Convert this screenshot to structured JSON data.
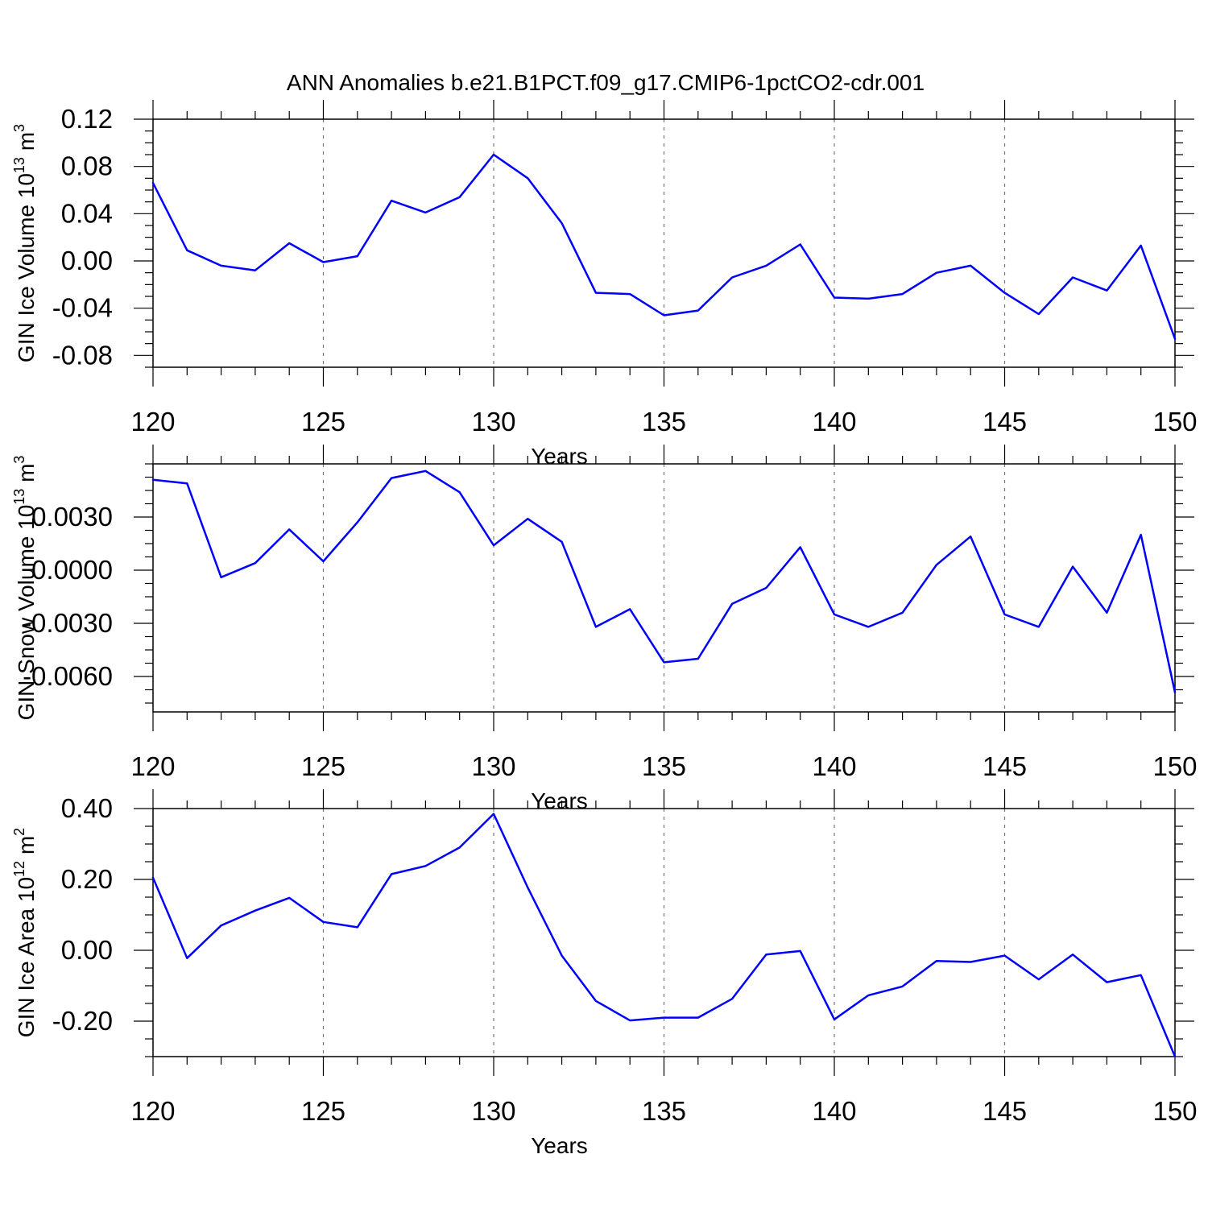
{
  "page_title": "ANN Anomalies b.e21.B1PCT.f09_g17.CMIP6-1pctCO2-cdr.001",
  "chart_data": [
    {
      "type": "line",
      "title": "ANN Anomalies b.e21.B1PCT.f09_g17.CMIP6-1pctCO2-cdr.001",
      "xlabel": "Years",
      "ylabel": "GIN Ice Volume 10",
      "ylabel_exp": "13",
      "ylabel_unit": " m",
      "ylabel_unit_exp": "3",
      "xlim": [
        120,
        150
      ],
      "ylim": [
        -0.09,
        0.12
      ],
      "xticks": [
        120,
        125,
        130,
        135,
        140,
        145,
        150
      ],
      "xtick_labels": [
        "120",
        "125",
        "130",
        "135",
        "140",
        "145",
        "150"
      ],
      "yticks": [
        0.12,
        0.08,
        0.04,
        0.0,
        -0.04,
        -0.08
      ],
      "ytick_labels": [
        "0.12",
        "0.08",
        "0.04",
        "0.00",
        "-0.04",
        "-0.08"
      ],
      "grid": "x-dashed",
      "color": "#0000ff",
      "x": [
        120,
        121,
        122,
        123,
        124,
        125,
        126,
        127,
        128,
        129,
        130,
        131,
        132,
        133,
        134,
        135,
        136,
        137,
        138,
        139,
        140,
        141,
        142,
        143,
        144,
        145,
        146,
        147,
        148,
        149,
        150
      ],
      "y": [
        0.066,
        0.009,
        -0.004,
        -0.008,
        0.015,
        -0.001,
        0.004,
        0.051,
        0.041,
        0.054,
        0.09,
        0.07,
        0.032,
        -0.027,
        -0.028,
        -0.046,
        -0.042,
        -0.014,
        -0.004,
        0.014,
        -0.031,
        -0.032,
        -0.028,
        -0.01,
        -0.004,
        -0.027,
        -0.045,
        -0.014,
        -0.025,
        0.013,
        -0.066
      ]
    },
    {
      "type": "line",
      "xlabel": "Years",
      "ylabel": "GIN Snow Volume 10",
      "ylabel_exp": "13",
      "ylabel_unit": " m",
      "ylabel_unit_exp": "3",
      "xlim": [
        120,
        150
      ],
      "ylim": [
        -0.008,
        0.006
      ],
      "xticks": [
        120,
        125,
        130,
        135,
        140,
        145,
        150
      ],
      "xtick_labels": [
        "120",
        "125",
        "130",
        "135",
        "140",
        "145",
        "150"
      ],
      "yticks": [
        0.003,
        0.0,
        -0.003,
        -0.006
      ],
      "ytick_labels": [
        "0.0030",
        "0.0000",
        "-0.0030",
        "-0.0060"
      ],
      "grid": "x-dashed",
      "color": "#0000ff",
      "x": [
        120,
        121,
        122,
        123,
        124,
        125,
        126,
        127,
        128,
        129,
        130,
        131,
        132,
        133,
        134,
        135,
        136,
        137,
        138,
        139,
        140,
        141,
        142,
        143,
        144,
        145,
        146,
        147,
        148,
        149,
        150
      ],
      "y": [
        0.0051,
        0.0049,
        -0.0004,
        0.0004,
        0.0023,
        0.0005,
        0.0027,
        0.0052,
        0.0056,
        0.0044,
        0.0014,
        0.0029,
        0.0016,
        -0.0032,
        -0.0022,
        -0.0052,
        -0.005,
        -0.0019,
        -0.001,
        0.0013,
        -0.0025,
        -0.0032,
        -0.0024,
        0.0003,
        0.0019,
        -0.0025,
        -0.0032,
        0.0002,
        -0.0024,
        0.002,
        -0.0069
      ]
    },
    {
      "type": "line",
      "xlabel": "Years",
      "ylabel": "GIN Ice Area 10",
      "ylabel_exp": "12",
      "ylabel_unit": " m",
      "ylabel_unit_exp": "2",
      "xlim": [
        120,
        150
      ],
      "ylim": [
        -0.3,
        0.4
      ],
      "xticks": [
        120,
        125,
        130,
        135,
        140,
        145,
        150
      ],
      "xtick_labels": [
        "120",
        "125",
        "130",
        "135",
        "140",
        "145",
        "150"
      ],
      "yticks": [
        0.4,
        0.2,
        0.0,
        -0.2
      ],
      "ytick_labels": [
        "0.40",
        "0.20",
        "0.00",
        "-0.20"
      ],
      "grid": "x-dashed",
      "color": "#0000ff",
      "x": [
        120,
        121,
        122,
        123,
        124,
        125,
        126,
        127,
        128,
        129,
        130,
        131,
        132,
        133,
        134,
        135,
        136,
        137,
        138,
        139,
        140,
        141,
        142,
        143,
        144,
        145,
        146,
        147,
        148,
        149,
        150
      ],
      "y": [
        0.205,
        -0.022,
        0.07,
        0.112,
        0.148,
        0.08,
        0.065,
        0.215,
        0.238,
        0.29,
        0.385,
        0.177,
        -0.015,
        -0.143,
        -0.198,
        -0.19,
        -0.19,
        -0.137,
        -0.012,
        -0.002,
        -0.195,
        -0.127,
        -0.102,
        -0.03,
        -0.033,
        -0.015,
        -0.082,
        -0.012,
        -0.09,
        -0.07,
        -0.3
      ]
    }
  ]
}
